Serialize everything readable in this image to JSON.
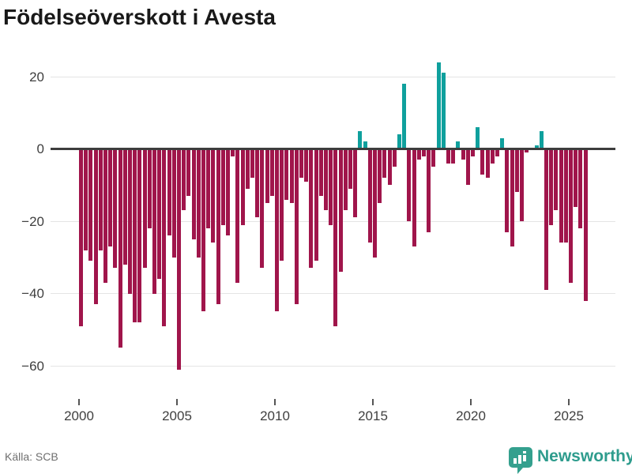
{
  "chart": {
    "title": "Födelseöverskott i Avesta"
  },
  "footer": {
    "source": "Källa: SCB",
    "brand": "Newsworthy"
  },
  "chart_data": {
    "type": "bar",
    "title": "Födelseöverskott i Avesta",
    "frequency": "quarterly",
    "start_period": "2000-Q1",
    "end_period": "2025-Q4",
    "x_ticks": [
      2000,
      2005,
      2010,
      2015,
      2020,
      2025
    ],
    "y_ticks": [
      20,
      0,
      -20,
      -40,
      -60
    ],
    "ylim": [
      -65,
      27
    ],
    "grid": "horizontal",
    "legend": "none",
    "colors": {
      "negative": "#a0154b",
      "positive": "#0fa09d",
      "zero_axis": "#3d3d3d",
      "gridline": "#e4e4e4",
      "brand_teal": "#2e9c8d"
    },
    "series": [
      {
        "name": "Födelseöverskott",
        "values": [
          -49,
          -28,
          -31,
          -43,
          -28,
          -37,
          -27,
          -33,
          -55,
          -32,
          -40,
          -48,
          -48,
          -33,
          -22,
          -40,
          -36,
          -49,
          -24,
          -30,
          -61,
          -17,
          -13,
          -25,
          -30,
          -45,
          -22,
          -26,
          -43,
          -21,
          -24,
          -2,
          -37,
          -21,
          -11,
          -8,
          -19,
          -33,
          -15,
          -13,
          -45,
          -31,
          -14,
          -15,
          -43,
          -8,
          -9,
          -33,
          -31,
          -13,
          -17,
          -21,
          -49,
          -34,
          -17,
          -11,
          -19,
          5,
          2,
          -26,
          -30,
          -15,
          -8,
          -10,
          -5,
          4,
          18,
          -20,
          -27,
          -3,
          -2,
          -23,
          -5,
          24,
          21,
          -4,
          -4,
          2,
          -3,
          -10,
          -2,
          6,
          -7,
          -8,
          -4,
          -2,
          3,
          -23,
          -27,
          -12,
          -20,
          -1,
          0,
          1,
          5,
          -39,
          -21,
          -17,
          -26,
          -26,
          -37,
          -16,
          -22,
          -42
        ]
      }
    ]
  }
}
